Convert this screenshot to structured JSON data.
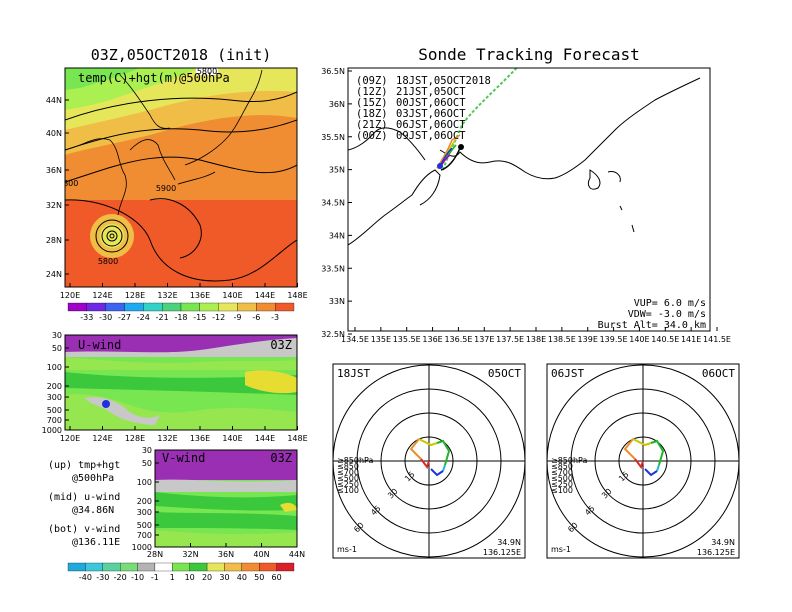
{
  "colors": {
    "bg": "#ffffff",
    "purple": "#9a2fb4",
    "green_dark": "#3cc83c",
    "green_light": "#96e650",
    "grey": "#c8c8c8",
    "yellow": "#e6dc32",
    "orange": "#f08228",
    "red_orange": "#f05028",
    "track_lime": "#50c850"
  },
  "map_panel": {
    "title": "03Z,05OCT2018 (init)",
    "label": "temp(C)+hgt(m)@500hPa",
    "lat_labels": [
      "44N",
      "40N",
      "36N",
      "32N",
      "28N",
      "24N"
    ],
    "lon_labels": [
      "120E",
      "124E",
      "128E",
      "132E",
      "136E",
      "140E",
      "144E",
      "148E"
    ],
    "contour_labels": [
      "5800",
      "5900",
      "5800",
      "5800"
    ],
    "colorbar_ticks": [
      "-33",
      "-30",
      "-27",
      "-24",
      "-21",
      "-18",
      "-15",
      "-12",
      "-9",
      "-6",
      "-3"
    ],
    "colorbar_colors": [
      "#a000c8",
      "#6e28e6",
      "#3c64f0",
      "#1eaaf0",
      "#32d2c8",
      "#4bd27d",
      "#78e650",
      "#aaf050",
      "#e6e65a",
      "#f0be46",
      "#f08c32",
      "#f05a28"
    ]
  },
  "uwind_panel": {
    "label": "U-wind",
    "time": "03Z",
    "pressure_labels": [
      "30",
      "50",
      "100",
      "200",
      "300",
      "500",
      "700",
      "1000"
    ],
    "lon_labels": [
      "120E",
      "124E",
      "128E",
      "132E",
      "136E",
      "140E",
      "144E",
      "148E"
    ]
  },
  "vwind_panel": {
    "label": "V-wind",
    "time": "03Z",
    "pressure_labels": [
      "30",
      "50",
      "100",
      "200",
      "300",
      "500",
      "700",
      "1000"
    ],
    "lat_labels": [
      "28N",
      "32N",
      "36N",
      "40N",
      "44N"
    ]
  },
  "notes": {
    "up": "(up) tmp+hgt",
    "up2": "@500hPa",
    "mid": "(mid) u-wind",
    "mid2": "@34.86N",
    "bot": "(bot) v-wind",
    "bot2": "@136.11E"
  },
  "wind_colorbar_ticks": [
    "-40",
    "-30",
    "-20",
    "-10",
    "-1",
    "1",
    "10",
    "20",
    "30",
    "40",
    "50",
    "60"
  ],
  "wind_colorbar_colors": [
    "#1eaadc",
    "#3cc8dc",
    "#5ad2a0",
    "#78dc78",
    "#b4b4b4",
    "#ffffff",
    "#78e650",
    "#3cc83c",
    "#e6e65a",
    "#f0be46",
    "#f08c32",
    "#f05a28",
    "#dc1e28"
  ],
  "track_panel": {
    "title": "Sonde Tracking Forecast",
    "lat_labels": [
      "36.5N",
      "36N",
      "35.5N",
      "35N",
      "34.5N",
      "34N",
      "33.5N",
      "33N",
      "32.5N"
    ],
    "lon_labels": [
      "134.5E",
      "135E",
      "135.5E",
      "136E",
      "136.5E",
      "137E",
      "137.5E",
      "138E",
      "138.5E",
      "139E",
      "139.5E",
      "140E",
      "140.5E",
      "141E",
      "141.5E"
    ],
    "legend": [
      {
        "tag": "(09Z)",
        "text": "18JST,05OCT2018",
        "color": "#000000"
      },
      {
        "tag": "(12Z)",
        "text": "21JST,05OCT",
        "color": "#9a00b4"
      },
      {
        "tag": "(15Z)",
        "text": "00JST,06OCT",
        "color": "#1e32dc"
      },
      {
        "tag": "(18Z)",
        "text": "03JST,06OCT",
        "color": "#1eaa28"
      },
      {
        "tag": "(21Z)",
        "text": "06JST,06OCT",
        "color": "#c8c800"
      },
      {
        "tag": "(00Z)",
        "text": "09JST,06OCT",
        "color": "#f08228"
      }
    ],
    "vup": "VUP= 6.0 m/s",
    "vdw": "VDW= -3.0 m/s",
    "burst": "Burst Alt= 34.0 km"
  },
  "hodographs": [
    {
      "time_left": "18JST",
      "date_right": "05OCT",
      "lat": "34.9N",
      "lon": "136.125E",
      "unit": "ms-1",
      "ring_labels": [
        "15",
        "30",
        "45",
        "60"
      ],
      "levels": [
        {
          "label": "≥850hPa",
          "color": "#dc2828"
        },
        {
          "label": "≤850",
          "color": "#f08c28"
        },
        {
          "label": "≤700",
          "color": "#c8c800"
        },
        {
          "label": "≤500",
          "color": "#1eb428"
        },
        {
          "label": "≤250",
          "color": "#28b4dc"
        },
        {
          "label": "≤100",
          "color": "#1e32dc"
        }
      ]
    },
    {
      "time_left": "06JST",
      "date_right": "06OCT",
      "lat": "34.9N",
      "lon": "136.125E",
      "unit": "ms-1",
      "ring_labels": [
        "15",
        "30",
        "45",
        "60"
      ],
      "levels": [
        {
          "label": "≥850hPa",
          "color": "#dc2828"
        },
        {
          "label": "≤850",
          "color": "#f08c28"
        },
        {
          "label": "≤700",
          "color": "#c8c800"
        },
        {
          "label": "≤500",
          "color": "#1eb428"
        },
        {
          "label": "≤250",
          "color": "#28b4dc"
        },
        {
          "label": "≤100",
          "color": "#1e32dc"
        }
      ]
    }
  ]
}
